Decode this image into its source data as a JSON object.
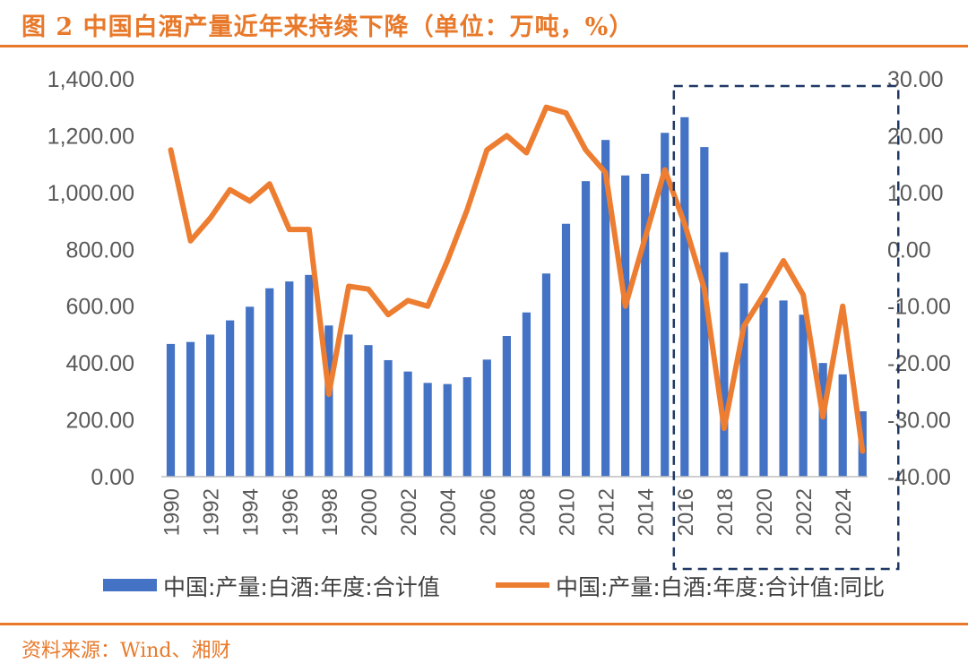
{
  "title": "图 2  中国白酒产量近年来持续下降（单位：万吨，%）",
  "source": "资料来源：Wind、湘财",
  "colors": {
    "bar": "#4472C4",
    "line": "#ED7D31",
    "accent": "#E8792A",
    "box": "#1F3864"
  },
  "chart_data": {
    "type": "bar+line",
    "x": [
      1990,
      1991,
      1992,
      1993,
      1994,
      1995,
      1996,
      1997,
      1998,
      1999,
      2000,
      2001,
      2002,
      2003,
      2004,
      2005,
      2006,
      2007,
      2008,
      2009,
      2010,
      2011,
      2012,
      2013,
      2014,
      2015,
      2016,
      2017,
      2018,
      2019,
      2020,
      2021,
      2022,
      2023,
      2024,
      2025
    ],
    "x_tick_labels": [
      "1990",
      "1992",
      "1994",
      "1996",
      "1998",
      "2000",
      "2002",
      "2004",
      "2006",
      "2008",
      "2010",
      "2012",
      "2014",
      "2016",
      "2018",
      "2020",
      "2022",
      "2024"
    ],
    "series": [
      {
        "name": "中国:产量:白酒:年度:合计值",
        "type": "bar",
        "axis": "left",
        "values": [
          467,
          474,
          500,
          550,
          598,
          663,
          687,
          710,
          532,
          500,
          463,
          410,
          370,
          330,
          326,
          350,
          412,
          495,
          578,
          715,
          890,
          1040,
          1185,
          1060,
          1066,
          1210,
          1265,
          1160,
          790,
          680,
          630,
          620,
          570,
          400,
          360,
          230
        ]
      },
      {
        "name": "中国:产量:白酒:年度:合计值:同比",
        "type": "line",
        "axis": "right",
        "values": [
          17.5,
          1.5,
          5.5,
          10.5,
          8.5,
          11.5,
          3.5,
          3.5,
          -25.5,
          -6.5,
          -7,
          -11.5,
          -9,
          -10,
          -2,
          7,
          17.5,
          20,
          17,
          25,
          24,
          17.5,
          13.5,
          -10,
          2,
          14,
          4.5,
          -7,
          -31.5,
          -13.5,
          -8,
          -2,
          -8,
          -29.5,
          -10,
          -35.5
        ]
      }
    ],
    "y_left": {
      "ticks": [
        "0.00",
        "200.00",
        "400.00",
        "600.00",
        "800.00",
        "1,000.00",
        "1,200.00",
        "1,400.00"
      ],
      "range": [
        0,
        1400
      ]
    },
    "y_right": {
      "ticks": [
        "30.00",
        "20.00",
        "10.00",
        "0.00",
        "-10.00",
        "-20.00",
        "-30.00",
        "-40.00"
      ],
      "range": [
        -40,
        30
      ]
    },
    "highlight_range": [
      2016,
      2025
    ],
    "grid": false,
    "legend_position": "bottom"
  }
}
